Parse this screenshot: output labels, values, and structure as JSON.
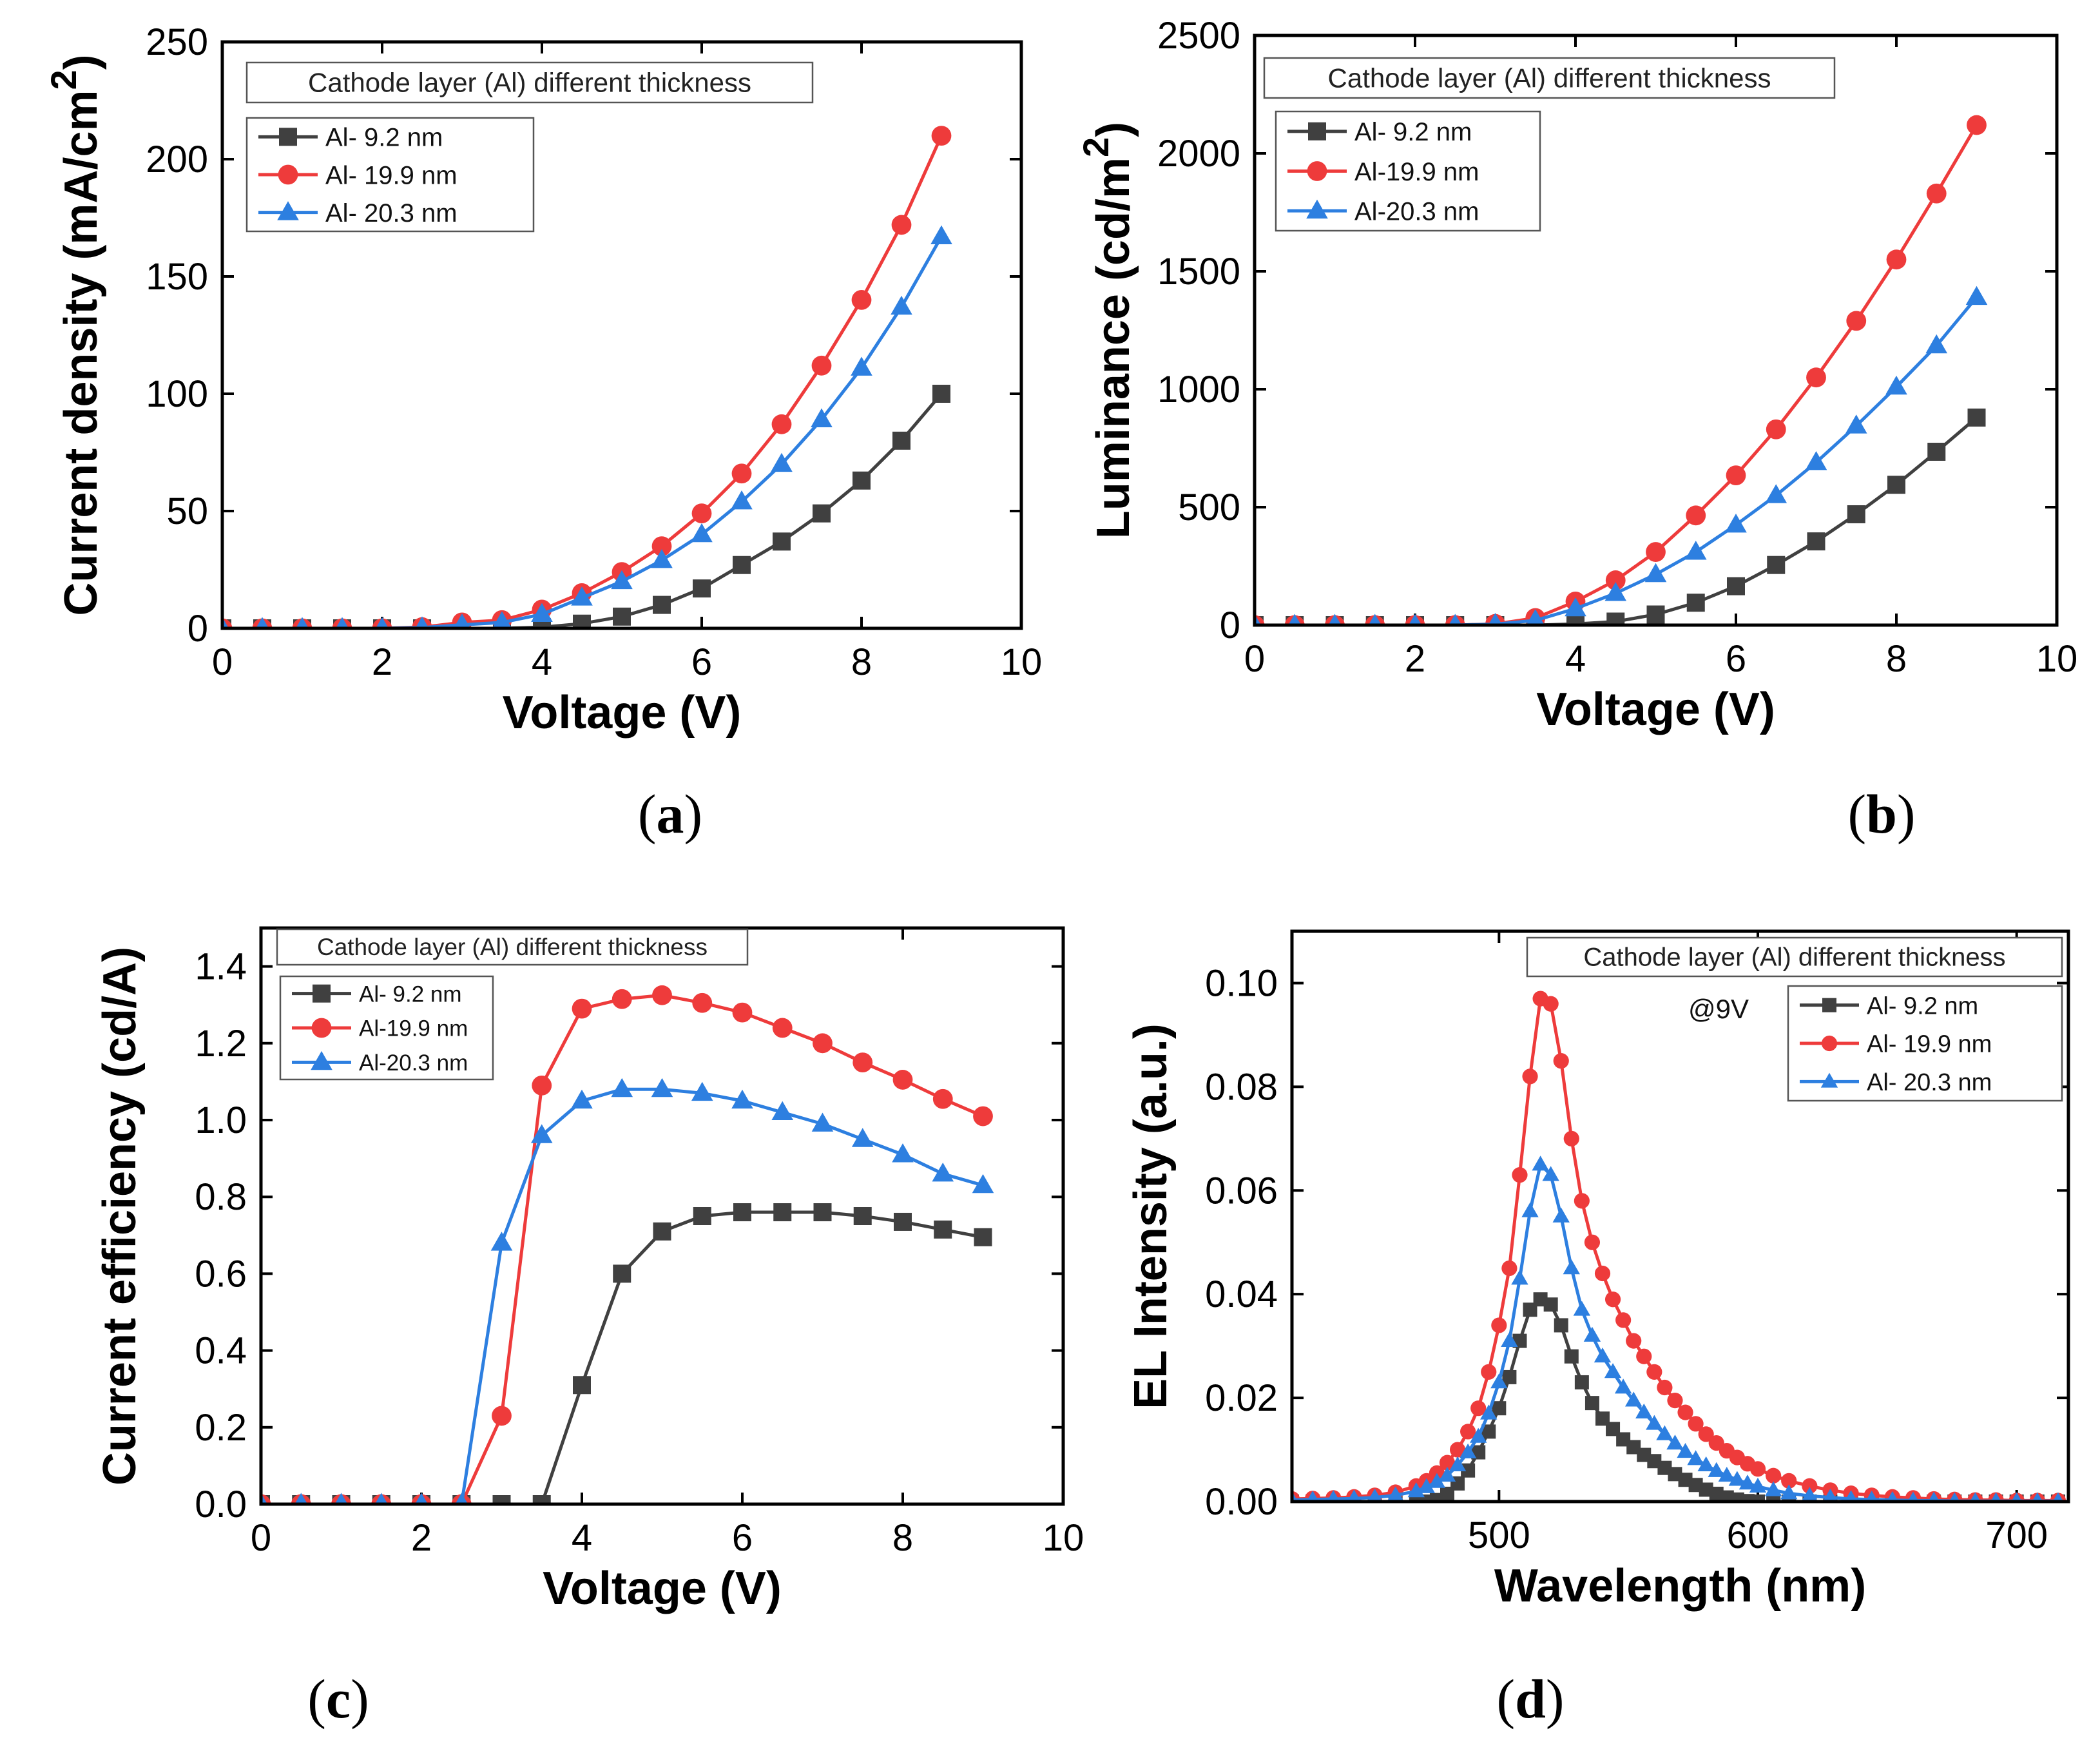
{
  "panels": [
    {
      "type": "line",
      "label": "a",
      "xlabel": "Voltage (V)",
      "ylabel_text": "Current density (mA/cm",
      "ylabel_sup": "2",
      "ylabel_close": ")",
      "xlim": [
        0,
        10
      ],
      "ylim": [
        0,
        250
      ],
      "xticks": [
        0,
        2,
        4,
        6,
        8,
        10
      ],
      "yticks": [
        0,
        50,
        100,
        150,
        200,
        250
      ],
      "tick_labels_x": [
        "0",
        "2",
        "4",
        "6",
        "8",
        "10"
      ],
      "tick_labels_y": [
        "0",
        "50",
        "100",
        "150",
        "200",
        "250"
      ],
      "legend_title": "Cathode layer (Al) different thickness",
      "x": [
        0,
        0.5,
        1,
        1.5,
        2,
        2.5,
        3,
        3.5,
        4,
        4.5,
        5,
        5.5,
        6,
        6.5,
        7,
        7.5,
        8,
        8.5,
        9
      ],
      "series": [
        {
          "name": "Al- 9.2 nm",
          "color": "#404040",
          "marker": "square",
          "values": [
            0,
            0,
            0,
            0,
            0,
            0,
            0,
            0,
            0.5,
            2,
            5,
            10,
            17,
            27,
            37,
            49,
            63,
            80,
            100
          ]
        },
        {
          "name": "Al- 19.9 nm",
          "color": "#ee3b3b",
          "marker": "circle",
          "values": [
            0,
            0,
            0,
            0,
            0,
            0.5,
            2.5,
            3.5,
            8,
            15,
            24,
            35,
            49,
            66,
            87,
            112,
            140,
            172,
            210
          ]
        },
        {
          "name": "Al- 20.3 nm",
          "color": "#2d7fe0",
          "marker": "triangle",
          "values": [
            0,
            0,
            0,
            0,
            0,
            0.3,
            1.5,
            2.5,
            6,
            13,
            20,
            29,
            40,
            54,
            70,
            89,
            111,
            137,
            167
          ]
        }
      ]
    },
    {
      "type": "line",
      "label": "b",
      "xlabel": "Voltage (V)",
      "ylabel_text": "Luminance (cd/m",
      "ylabel_sup": "2",
      "ylabel_close": ")",
      "xlim": [
        0,
        10
      ],
      "ylim": [
        0,
        2500
      ],
      "xticks": [
        0,
        2,
        4,
        6,
        8,
        10
      ],
      "yticks": [
        0,
        500,
        1000,
        1500,
        2000,
        2500
      ],
      "tick_labels_x": [
        "0",
        "2",
        "4",
        "6",
        "8",
        "10"
      ],
      "tick_labels_y": [
        "0",
        "500",
        "1000",
        "1500",
        "2000",
        "2500"
      ],
      "legend_title": "Cathode layer (Al) different thickness",
      "x": [
        0,
        0.5,
        1,
        1.5,
        2,
        2.5,
        3,
        3.5,
        4,
        4.5,
        5,
        5.5,
        6,
        6.5,
        7,
        7.5,
        8,
        8.5,
        9
      ],
      "series": [
        {
          "name": "Al- 9.2 nm",
          "color": "#404040",
          "marker": "square",
          "values": [
            0,
            0,
            0,
            0,
            0,
            0,
            0,
            0,
            5,
            15,
            45,
            95,
            165,
            255,
            355,
            470,
            595,
            735,
            880
          ]
        },
        {
          "name": "Al-19.9 nm",
          "color": "#ee3b3b",
          "marker": "circle",
          "values": [
            0,
            0,
            0,
            0,
            0,
            0,
            5,
            30,
            100,
            190,
            310,
            465,
            635,
            830,
            1050,
            1290,
            1550,
            1830,
            2120
          ]
        },
        {
          "name": "Al-20.3 nm",
          "color": "#2d7fe0",
          "marker": "triangle",
          "values": [
            0,
            0,
            0,
            0,
            0,
            0,
            4,
            20,
            70,
            135,
            215,
            310,
            425,
            550,
            690,
            845,
            1010,
            1185,
            1390
          ]
        }
      ]
    },
    {
      "type": "line",
      "label": "c",
      "xlabel": "Voltage (V)",
      "ylabel_text": "Current efficiency (cd/A)",
      "ylabel_sup": "",
      "ylabel_close": "",
      "xlim": [
        0,
        10
      ],
      "ylim": [
        0,
        1.5
      ],
      "xticks": [
        0,
        2,
        4,
        6,
        8,
        10
      ],
      "yticks": [
        0,
        0.2,
        0.4,
        0.6,
        0.8,
        1.0,
        1.2,
        1.4
      ],
      "tick_labels_x": [
        "0",
        "2",
        "4",
        "6",
        "8",
        "10"
      ],
      "tick_labels_y": [
        "0.0",
        "0.2",
        "0.4",
        "0.6",
        "0.8",
        "1.0",
        "1.2",
        "1.4"
      ],
      "legend_title": "Cathode layer (Al) different thickness",
      "x": [
        0,
        0.5,
        1,
        1.5,
        2,
        2.5,
        3,
        3.5,
        4,
        4.5,
        5,
        5.5,
        6,
        6.5,
        7,
        7.5,
        8,
        8.5,
        9
      ],
      "series": [
        {
          "name": "Al- 9.2 nm",
          "color": "#404040",
          "marker": "square",
          "values": [
            0,
            0,
            0,
            0,
            0,
            0,
            0,
            0,
            0.31,
            0.6,
            0.71,
            0.75,
            0.76,
            0.76,
            0.76,
            0.75,
            0.735,
            0.715,
            0.695
          ]
        },
        {
          "name": "Al-19.9 nm",
          "color": "#ee3b3b",
          "marker": "circle",
          "values": [
            0,
            0,
            0,
            0,
            0,
            0,
            0.23,
            1.09,
            1.29,
            1.315,
            1.325,
            1.305,
            1.28,
            1.24,
            1.2,
            1.15,
            1.105,
            1.055,
            1.01
          ]
        },
        {
          "name": "Al-20.3 nm",
          "color": "#2d7fe0",
          "marker": "triangle",
          "values": [
            0,
            0,
            0,
            0,
            0,
            0,
            0.68,
            0.96,
            1.05,
            1.08,
            1.08,
            1.07,
            1.05,
            1.02,
            0.99,
            0.95,
            0.91,
            0.86,
            0.83
          ]
        }
      ]
    },
    {
      "type": "line",
      "label": "d",
      "xlabel": "Wavelength (nm)",
      "ylabel_text": "EL Intensity (a.u.)",
      "ylabel_sup": "",
      "ylabel_close": "",
      "xlim": [
        420,
        720
      ],
      "ylim": [
        0,
        0.11
      ],
      "xticks": [
        500,
        600,
        700
      ],
      "yticks": [
        0,
        0.02,
        0.04,
        0.06,
        0.08,
        0.1
      ],
      "tick_labels_x": [
        "500",
        "600",
        "700"
      ],
      "tick_labels_y": [
        "0.00",
        "0.02",
        "0.04",
        "0.06",
        "0.08",
        "0.10"
      ],
      "legend_title": "Cathode layer (Al) different thickness",
      "annotation": "@9V",
      "x": [
        420,
        428,
        436,
        444,
        452,
        460,
        468,
        472,
        476,
        480,
        484,
        488,
        492,
        496,
        500,
        504,
        508,
        512,
        516,
        520,
        524,
        528,
        532,
        536,
        540,
        544,
        548,
        552,
        556,
        560,
        564,
        568,
        572,
        576,
        580,
        584,
        588,
        592,
        596,
        600,
        606,
        612,
        620,
        628,
        636,
        644,
        652,
        660,
        668,
        676,
        684,
        692,
        700,
        708,
        716
      ],
      "series": [
        {
          "name": "Al- 9.2 nm",
          "color": "#404040",
          "marker": "square",
          "values": [
            0,
            0,
            0,
            0,
            0,
            0,
            0,
            0,
            0.0003,
            0.0015,
            0.0035,
            0.006,
            0.0095,
            0.0135,
            0.018,
            0.024,
            0.031,
            0.037,
            0.039,
            0.038,
            0.034,
            0.028,
            0.023,
            0.019,
            0.016,
            0.014,
            0.012,
            0.0105,
            0.009,
            0.0078,
            0.0065,
            0.0053,
            0.0042,
            0.0032,
            0.0023,
            0.0015,
            0.0008,
            0.0004,
            0.0001,
            0,
            0,
            0,
            0,
            0,
            0,
            0,
            0,
            0,
            0,
            0,
            0,
            0,
            0,
            0,
            0
          ]
        },
        {
          "name": "Al- 19.9 nm",
          "color": "#ee3b3b",
          "marker": "circle",
          "values": [
            0.0005,
            0.0006,
            0.0007,
            0.0009,
            0.0012,
            0.0018,
            0.003,
            0.004,
            0.0055,
            0.0075,
            0.01,
            0.0135,
            0.018,
            0.025,
            0.034,
            0.045,
            0.063,
            0.082,
            0.097,
            0.096,
            0.085,
            0.07,
            0.058,
            0.05,
            0.044,
            0.039,
            0.035,
            0.031,
            0.028,
            0.025,
            0.022,
            0.0195,
            0.0172,
            0.015,
            0.013,
            0.0113,
            0.0098,
            0.0085,
            0.0073,
            0.0063,
            0.005,
            0.004,
            0.003,
            0.0022,
            0.0016,
            0.0012,
            0.0009,
            0.0007,
            0.0005,
            0.0004,
            0.0003,
            0.0003,
            0.0002,
            0.0002,
            0.0002
          ]
        },
        {
          "name": "Al- 20.3 nm",
          "color": "#2d7fe0",
          "marker": "triangle",
          "values": [
            0.0003,
            0.0004,
            0.0005,
            0.0006,
            0.0008,
            0.0012,
            0.002,
            0.0028,
            0.0038,
            0.005,
            0.007,
            0.0095,
            0.0125,
            0.017,
            0.023,
            0.031,
            0.043,
            0.056,
            0.065,
            0.063,
            0.055,
            0.045,
            0.037,
            0.032,
            0.028,
            0.025,
            0.022,
            0.0195,
            0.0172,
            0.015,
            0.013,
            0.0112,
            0.0096,
            0.0082,
            0.007,
            0.0059,
            0.005,
            0.0042,
            0.0035,
            0.0029,
            0.0022,
            0.0016,
            0.0011,
            0.0008,
            0.0005,
            0.0004,
            0.0003,
            0.0002,
            0.0002,
            0.0001,
            0.0001,
            0.0001,
            0.0001,
            0.0001,
            0.0001
          ]
        }
      ]
    }
  ]
}
